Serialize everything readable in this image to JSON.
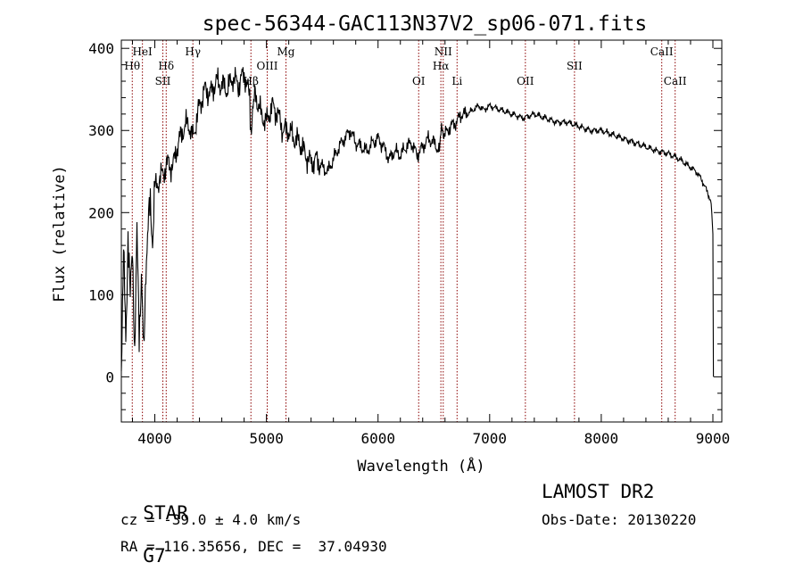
{
  "chart_data": {
    "type": "line",
    "title": "spec-56344-GAC113N37V2_sp06-071.fits",
    "xlabel": "Wavelength (Å)",
    "ylabel": "Flux (relative)",
    "xlim": [
      3700,
      9080
    ],
    "ylim": [
      -55,
      410
    ],
    "xticks": [
      4000,
      5000,
      6000,
      7000,
      8000,
      9000
    ],
    "yticks": [
      0,
      100,
      200,
      300,
      400
    ],
    "grid": false,
    "line_color": "#000000",
    "marker_color": "#8b0000",
    "series": [
      {
        "x": [
          3700,
          3720,
          3740,
          3760,
          3780,
          3800,
          3820,
          3840,
          3860,
          3880,
          3900,
          3920,
          3940,
          3960,
          3980,
          4000,
          4040,
          4080,
          4120,
          4160,
          4200,
          4250,
          4300,
          4340,
          4400,
          4450,
          4500,
          4550,
          4600,
          4650,
          4700,
          4750,
          4800,
          4850,
          4861,
          4900,
          4950,
          5000,
          5050,
          5100,
          5150,
          5200,
          5250,
          5300,
          5350,
          5400,
          5450,
          5500,
          5550,
          5600,
          5650,
          5700,
          5750,
          5800,
          5850,
          5900,
          5950,
          6000,
          6050,
          6100,
          6150,
          6200,
          6250,
          6300,
          6350,
          6400,
          6450,
          6500,
          6550,
          6563,
          6600,
          6650,
          6700,
          6750,
          6800,
          6850,
          6900,
          6950,
          7000,
          7100,
          7200,
          7300,
          7400,
          7500,
          7600,
          7700,
          7800,
          7900,
          8000,
          8100,
          8200,
          8300,
          8400,
          8500,
          8600,
          8700,
          8800,
          8850,
          8900,
          8950,
          8980,
          8990,
          9000,
          9005
        ],
        "y": [
          20,
          150,
          40,
          180,
          90,
          160,
          30,
          170,
          60,
          120,
          20,
          140,
          180,
          210,
          170,
          230,
          240,
          250,
          260,
          255,
          280,
          300,
          310,
          290,
          330,
          350,
          345,
          360,
          355,
          350,
          365,
          355,
          370,
          340,
          300,
          345,
          320,
          310,
          330,
          320,
          300,
          300,
          290,
          285,
          270,
          260,
          265,
          255,
          250,
          265,
          280,
          290,
          300,
          285,
          280,
          275,
          285,
          290,
          280,
          265,
          275,
          270,
          280,
          285,
          270,
          280,
          290,
          285,
          275,
          300,
          295,
          305,
          310,
          320,
          320,
          325,
          330,
          325,
          330,
          325,
          320,
          315,
          320,
          315,
          310,
          310,
          305,
          300,
          300,
          295,
          290,
          285,
          280,
          275,
          272,
          265,
          255,
          250,
          240,
          225,
          215,
          200,
          170,
          0
        ]
      }
    ],
    "line_markers": [
      {
        "label": "HeI",
        "x": 3889,
        "row": 0
      },
      {
        "label": "Hθ",
        "x": 3798,
        "row": 1
      },
      {
        "label": "Hδ",
        "x": 4102,
        "row": 1
      },
      {
        "label": "SII",
        "x": 4072,
        "row": 2
      },
      {
        "label": "Hγ",
        "x": 4341,
        "row": 0
      },
      {
        "label": "Hβ",
        "x": 4861,
        "row": 2
      },
      {
        "label": "OIII",
        "x": 5007,
        "row": 1
      },
      {
        "label": "Mg",
        "x": 5175,
        "row": 0
      },
      {
        "label": "OI",
        "x": 6364,
        "row": 2
      },
      {
        "label": "NII",
        "x": 6584,
        "row": 0
      },
      {
        "label": "Hα",
        "x": 6563,
        "row": 1
      },
      {
        "label": "Li",
        "x": 6708,
        "row": 2
      },
      {
        "label": "OII",
        "x": 7320,
        "row": 2
      },
      {
        "label": "SII",
        "x": 7760,
        "row": 1
      },
      {
        "label": "CaII",
        "x": 8542,
        "row": 0
      },
      {
        "label": "CaII",
        "x": 8662,
        "row": 2
      }
    ]
  },
  "info": {
    "class_label": "STAR",
    "subclass_label": "G7",
    "survey_label": "LAMOST DR2",
    "cz_text": "cz = -39.0 ± 4.0 km/s",
    "obs_date_text": "Obs-Date: 20130220",
    "coords_text": "RA = 116.35656, DEC =  37.04930"
  }
}
